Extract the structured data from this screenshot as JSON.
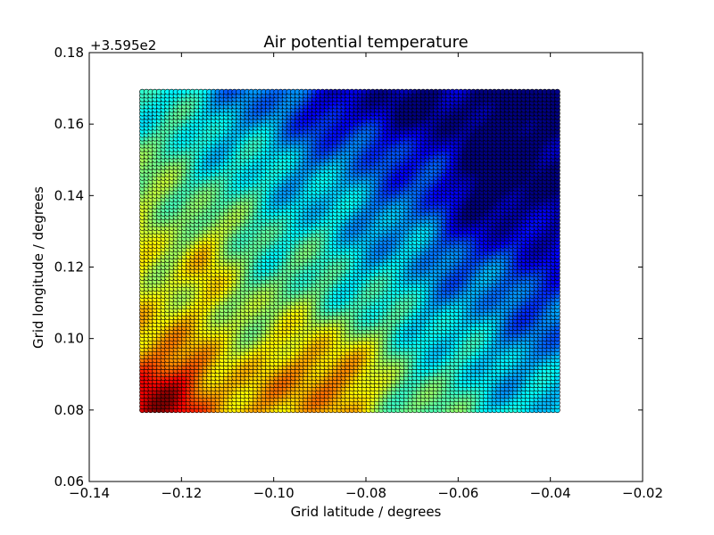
{
  "chart_data": {
    "type": "scatter",
    "title": "Air potential temperature",
    "xlabel": "Grid latitude / degrees",
    "ylabel": "Grid longitude / degrees",
    "xlim": [
      -0.14,
      -0.02
    ],
    "ylim": [
      0.06,
      0.18
    ],
    "xticks": [
      "−0.14",
      "−0.12",
      "−0.10",
      "−0.08",
      "−0.06",
      "−0.04",
      "−0.02"
    ],
    "yticks": [
      "0.06",
      "0.08",
      "0.10",
      "0.12",
      "0.14",
      "0.16",
      "0.18"
    ],
    "y_offset_label": "+3.595e2",
    "grid": false,
    "colormap": "jet",
    "marker_edge_color": "#000000",
    "data_extent": {
      "x": [
        -0.1285,
        -0.0385
      ],
      "y": [
        0.08,
        0.169
      ]
    },
    "grid_shape": {
      "columns": 100,
      "rows": 90
    },
    "field_description_points": [
      {
        "x": -0.125,
        "y": 0.083,
        "level": 0.97
      },
      {
        "x": -0.09,
        "y": 0.09,
        "level": 0.95
      },
      {
        "x": -0.115,
        "y": 0.115,
        "level": 0.9
      },
      {
        "x": -0.11,
        "y": 0.163,
        "level": 0.2
      },
      {
        "x": -0.06,
        "y": 0.163,
        "level": 0.1
      },
      {
        "x": -0.045,
        "y": 0.14,
        "level": 0.1
      },
      {
        "x": -0.04,
        "y": 0.09,
        "level": 0.45
      }
    ]
  }
}
